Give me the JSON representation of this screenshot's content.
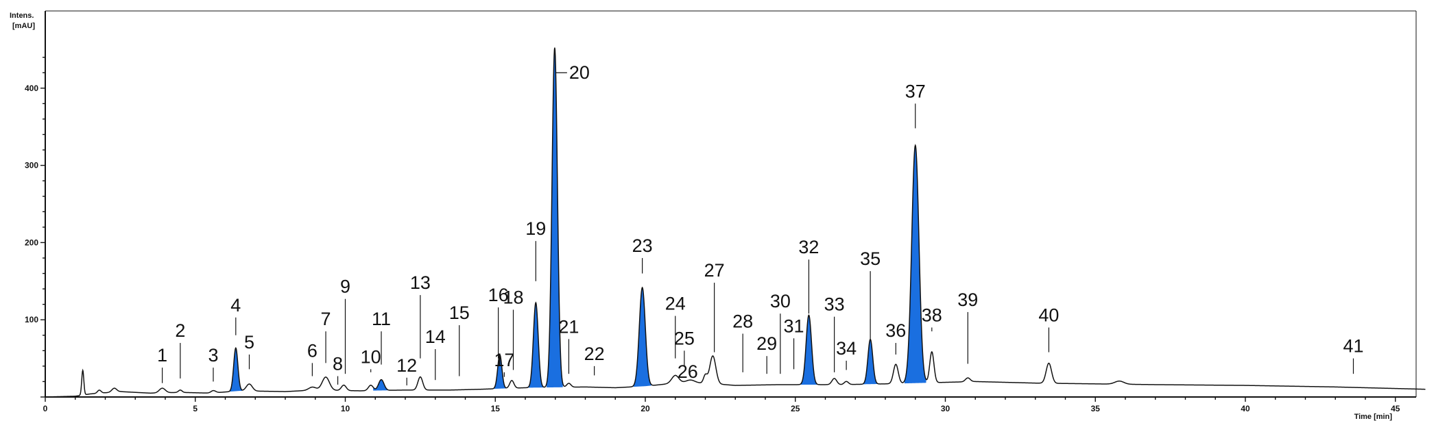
{
  "chart_data": {
    "type": "line",
    "title": "",
    "ylabel_lines": [
      "Intens.",
      "[mAU]"
    ],
    "xlabel": "Time [min]",
    "xlim": [
      0,
      46
    ],
    "ylim": [
      0,
      460
    ],
    "xticks": [
      0,
      5,
      10,
      15,
      20,
      25,
      30,
      35,
      40,
      45
    ],
    "yticks": [
      100,
      200,
      300,
      400
    ],
    "grid": false,
    "colors": {
      "trace": "#111111",
      "fill": "#1a6fe0"
    },
    "baseline": [
      [
        0,
        0
      ],
      [
        1.0,
        1
      ],
      [
        1.5,
        4
      ],
      [
        2.5,
        7
      ],
      [
        3.5,
        5
      ],
      [
        4.5,
        6
      ],
      [
        5.5,
        5
      ],
      [
        6.5,
        8
      ],
      [
        8,
        7
      ],
      [
        9,
        9
      ],
      [
        10.5,
        8
      ],
      [
        12,
        9
      ],
      [
        13.5,
        9
      ],
      [
        14.5,
        10
      ],
      [
        16,
        12
      ],
      [
        18,
        13
      ],
      [
        19,
        12
      ],
      [
        20,
        14
      ],
      [
        21,
        18
      ],
      [
        22,
        18
      ],
      [
        23,
        15
      ],
      [
        24.5,
        16
      ],
      [
        26.5,
        16
      ],
      [
        28,
        17
      ],
      [
        30,
        19
      ],
      [
        31,
        20
      ],
      [
        33,
        18
      ],
      [
        35,
        17
      ],
      [
        37,
        16
      ],
      [
        40,
        15
      ],
      [
        43,
        13
      ],
      [
        45,
        11
      ],
      [
        46,
        10
      ]
    ],
    "peaks": [
      {
        "t": 1.25,
        "h": 32,
        "w": 0.035,
        "fill": false
      },
      {
        "t": 1.8,
        "h": 4,
        "w": 0.06,
        "fill": false
      },
      {
        "t": 2.3,
        "h": 5,
        "w": 0.08,
        "fill": false
      },
      {
        "t": 3.9,
        "h": 6,
        "w": 0.1,
        "fill": false
      },
      {
        "t": 4.5,
        "h": 3,
        "w": 0.06,
        "fill": false
      },
      {
        "t": 5.6,
        "h": 3,
        "w": 0.08,
        "fill": false
      },
      {
        "t": 6.35,
        "h": 56,
        "w": 0.07,
        "fill": true
      },
      {
        "t": 6.8,
        "h": 9,
        "w": 0.1,
        "fill": false
      },
      {
        "t": 8.9,
        "h": 4,
        "w": 0.12,
        "fill": false
      },
      {
        "t": 9.35,
        "h": 17,
        "w": 0.12,
        "fill": false
      },
      {
        "t": 9.95,
        "h": 7,
        "w": 0.08,
        "fill": false
      },
      {
        "t": 10.85,
        "h": 7,
        "w": 0.08,
        "fill": false
      },
      {
        "t": 11.2,
        "h": 14,
        "w": 0.09,
        "fill": true
      },
      {
        "t": 12.5,
        "h": 17,
        "w": 0.08,
        "fill": false
      },
      {
        "t": 15.15,
        "h": 44,
        "w": 0.07,
        "fill": true
      },
      {
        "t": 15.55,
        "h": 10,
        "w": 0.07,
        "fill": false
      },
      {
        "t": 16.35,
        "h": 110,
        "w": 0.08,
        "fill": true
      },
      {
        "t": 16.98,
        "h": 440,
        "w": 0.09,
        "fill": true
      },
      {
        "t": 17.45,
        "h": 5,
        "w": 0.07,
        "fill": false
      },
      {
        "t": 19.9,
        "h": 128,
        "w": 0.1,
        "fill": true
      },
      {
        "t": 21.0,
        "h": 10,
        "w": 0.12,
        "fill": false
      },
      {
        "t": 21.5,
        "h": 4,
        "w": 0.15,
        "fill": false
      },
      {
        "t": 22.0,
        "h": 10,
        "w": 0.06,
        "fill": false
      },
      {
        "t": 22.25,
        "h": 36,
        "w": 0.1,
        "fill": false
      },
      {
        "t": 25.45,
        "h": 90,
        "w": 0.09,
        "fill": true
      },
      {
        "t": 26.3,
        "h": 8,
        "w": 0.08,
        "fill": false
      },
      {
        "t": 26.7,
        "h": 4,
        "w": 0.07,
        "fill": false
      },
      {
        "t": 27.5,
        "h": 58,
        "w": 0.08,
        "fill": true
      },
      {
        "t": 28.35,
        "h": 25,
        "w": 0.08,
        "fill": false
      },
      {
        "t": 29.0,
        "h": 308,
        "w": 0.12,
        "fill": true
      },
      {
        "t": 29.55,
        "h": 40,
        "w": 0.07,
        "fill": false
      },
      {
        "t": 30.75,
        "h": 5,
        "w": 0.08,
        "fill": false
      },
      {
        "t": 33.45,
        "h": 26,
        "w": 0.09,
        "fill": false
      },
      {
        "t": 35.8,
        "h": 4,
        "w": 0.15,
        "fill": false
      }
    ],
    "annotations": [
      {
        "label": "1",
        "t": 3.9,
        "lb": 18,
        "lt": 38,
        "side": "top"
      },
      {
        "label": "2",
        "t": 4.5,
        "lb": 24,
        "lt": 70,
        "side": "top"
      },
      {
        "label": "3",
        "t": 5.6,
        "lb": 20,
        "lt": 38,
        "side": "top"
      },
      {
        "label": "4",
        "t": 6.35,
        "lb": 80,
        "lt": 103,
        "side": "top"
      },
      {
        "label": "5",
        "t": 6.8,
        "lb": 36,
        "lt": 55,
        "side": "top"
      },
      {
        "label": "6",
        "t": 8.9,
        "lb": 27,
        "lt": 44,
        "side": "top"
      },
      {
        "label": "7",
        "t": 9.35,
        "lb": 44,
        "lt": 85,
        "side": "top"
      },
      {
        "label": "8",
        "t": 9.75,
        "lb": 16,
        "lt": 27,
        "side": "top"
      },
      {
        "label": "9",
        "t": 10.0,
        "lb": 30,
        "lt": 127,
        "side": "top"
      },
      {
        "label": "10",
        "t": 10.85,
        "lb": 32,
        "lt": 36,
        "side": "top"
      },
      {
        "label": "11",
        "t": 11.2,
        "lb": 42,
        "lt": 85,
        "side": "top"
      },
      {
        "label": "12",
        "t": 12.05,
        "lb": 15,
        "lt": 25,
        "side": "top"
      },
      {
        "label": "13",
        "t": 12.5,
        "lb": 50,
        "lt": 132,
        "side": "top"
      },
      {
        "label": "14",
        "t": 13.0,
        "lb": 22,
        "lt": 62,
        "side": "top"
      },
      {
        "label": "15",
        "t": 13.8,
        "lb": 27,
        "lt": 93,
        "side": "top"
      },
      {
        "label": "16",
        "t": 15.1,
        "lb": 50,
        "lt": 116,
        "side": "top"
      },
      {
        "label": "17",
        "t": 15.3,
        "lb": 26,
        "lt": 32,
        "side": "top"
      },
      {
        "label": "18",
        "t": 15.6,
        "lb": 35,
        "lt": 113,
        "side": "top"
      },
      {
        "label": "19",
        "t": 16.35,
        "lb": 150,
        "lt": 202,
        "side": "top"
      },
      {
        "label": "20",
        "t": 16.98,
        "lb": 420,
        "lt": 420,
        "side": "right"
      },
      {
        "label": "21",
        "t": 17.45,
        "lb": 30,
        "lt": 75,
        "side": "top"
      },
      {
        "label": "22",
        "t": 18.3,
        "lb": 28,
        "lt": 40,
        "side": "top"
      },
      {
        "label": "23",
        "t": 19.9,
        "lb": 160,
        "lt": 180,
        "side": "top"
      },
      {
        "label": "24",
        "t": 21.0,
        "lb": 50,
        "lt": 105,
        "side": "top"
      },
      {
        "label": "25",
        "t": 21.3,
        "lb": 40,
        "lt": 60,
        "side": "top"
      },
      {
        "label": "26",
        "t": 21.8,
        "lb": 33,
        "lt": 33,
        "side": "left"
      },
      {
        "label": "27",
        "t": 22.3,
        "lb": 58,
        "lt": 148,
        "side": "top"
      },
      {
        "label": "28",
        "t": 23.25,
        "lb": 32,
        "lt": 82,
        "side": "top"
      },
      {
        "label": "29",
        "t": 24.05,
        "lb": 30,
        "lt": 53,
        "side": "top"
      },
      {
        "label": "30",
        "t": 24.5,
        "lb": 30,
        "lt": 108,
        "side": "top"
      },
      {
        "label": "31",
        "t": 24.95,
        "lb": 36,
        "lt": 76,
        "side": "top"
      },
      {
        "label": "32",
        "t": 25.45,
        "lb": 108,
        "lt": 178,
        "side": "top"
      },
      {
        "label": "33",
        "t": 26.3,
        "lb": 32,
        "lt": 104,
        "side": "top"
      },
      {
        "label": "34",
        "t": 26.7,
        "lb": 35,
        "lt": 47,
        "side": "top"
      },
      {
        "label": "35",
        "t": 27.5,
        "lb": 73,
        "lt": 163,
        "side": "top"
      },
      {
        "label": "36",
        "t": 28.35,
        "lb": 55,
        "lt": 70,
        "side": "top"
      },
      {
        "label": "37",
        "t": 29.0,
        "lb": 348,
        "lt": 380,
        "side": "top"
      },
      {
        "label": "38",
        "t": 29.55,
        "lb": 85,
        "lt": 90,
        "side": "top"
      },
      {
        "label": "39",
        "t": 30.75,
        "lb": 43,
        "lt": 110,
        "side": "top"
      },
      {
        "label": "40",
        "t": 33.45,
        "lb": 58,
        "lt": 90,
        "side": "top"
      },
      {
        "label": "41",
        "t": 43.6,
        "lb": 30,
        "lt": 50,
        "side": "top"
      }
    ]
  }
}
